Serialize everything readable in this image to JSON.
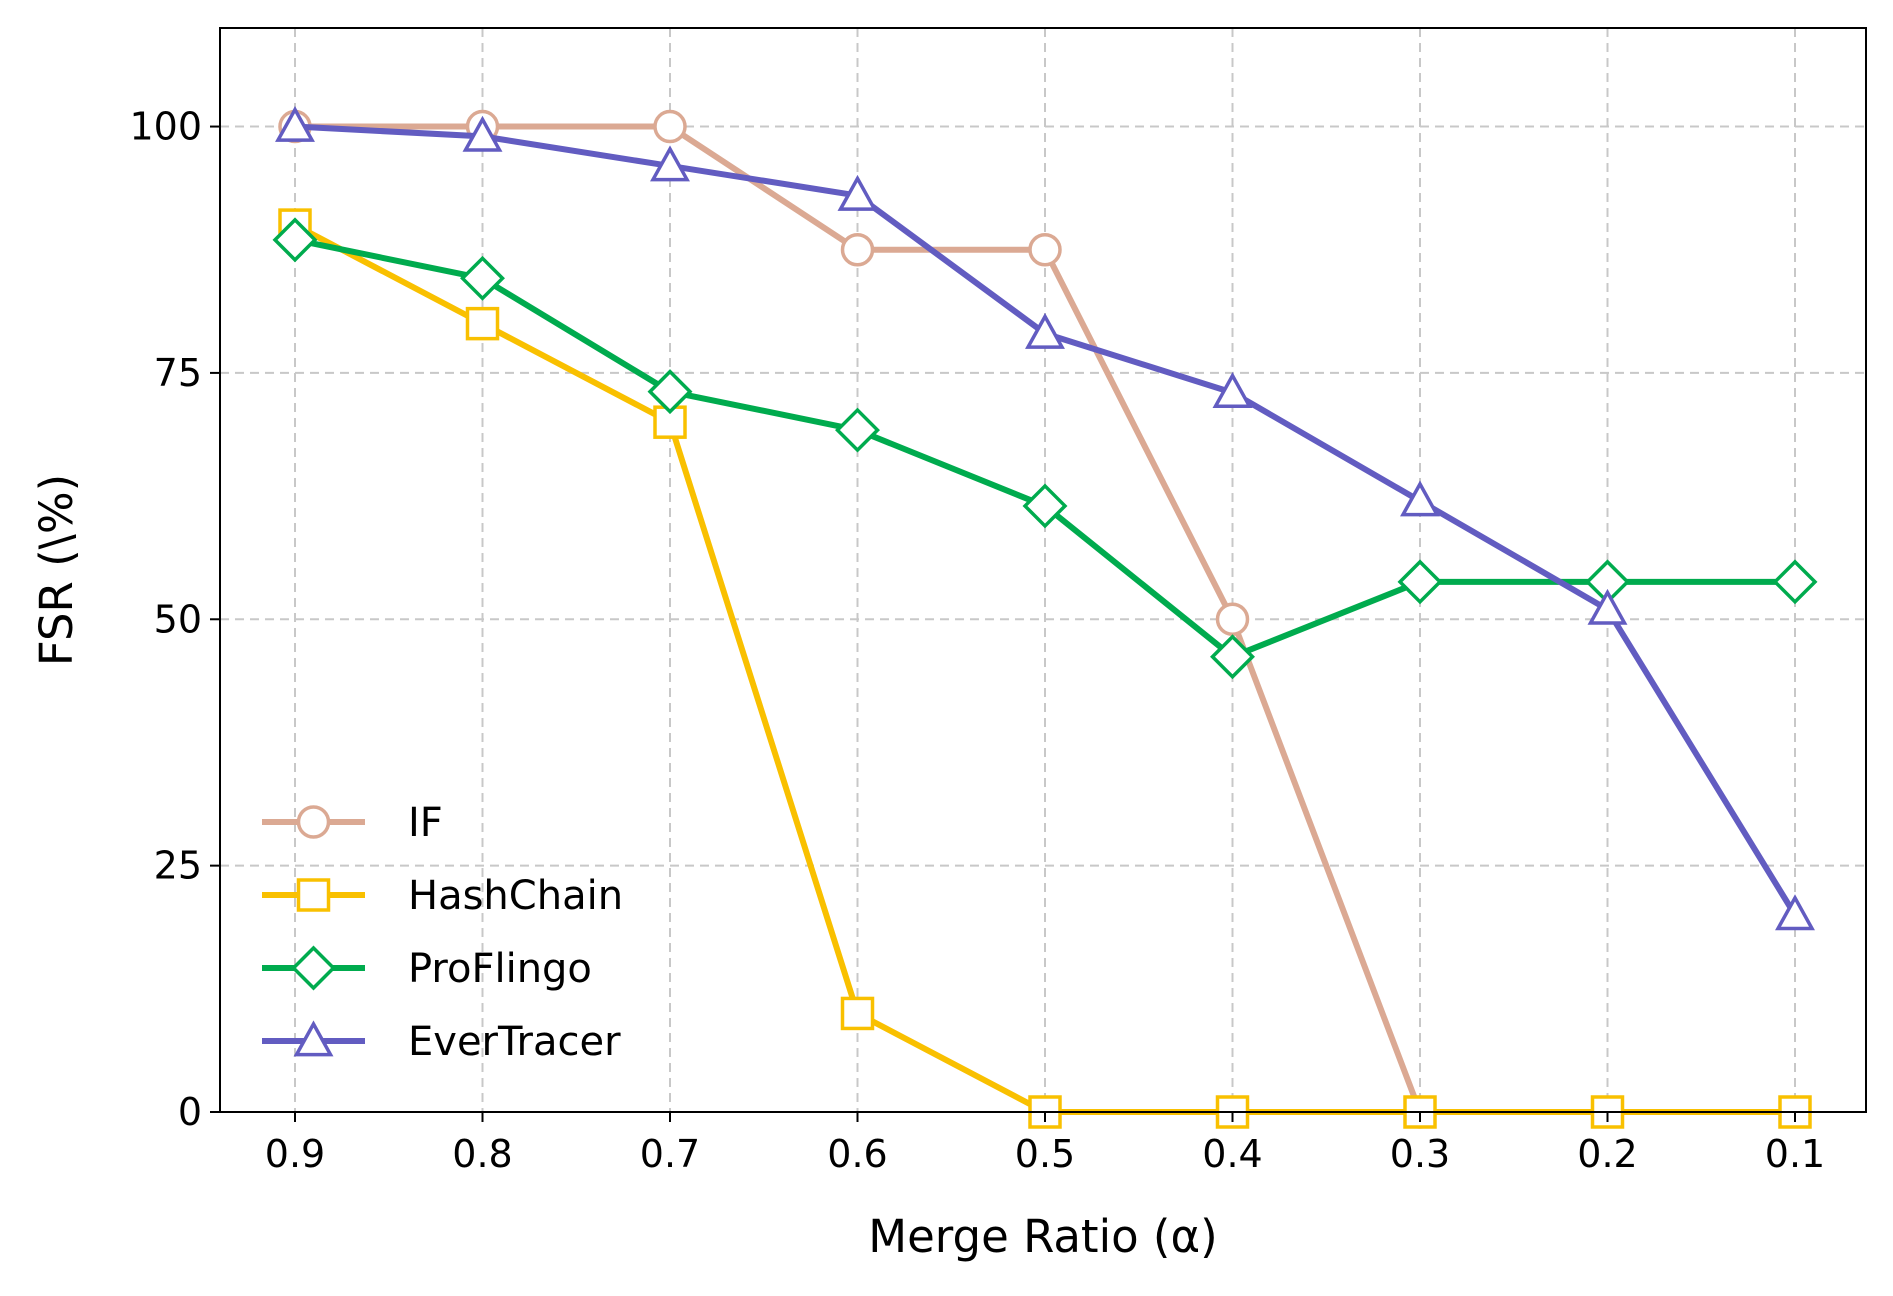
{
  "chart_data": {
    "type": "line",
    "title": "",
    "xlabel": "Merge Ratio (α)",
    "ylabel": "FSR (\\%)",
    "x": [
      0.9,
      0.8,
      0.7,
      0.6,
      0.5,
      0.4,
      0.3,
      0.2,
      0.1
    ],
    "x_tick_labels": [
      "0.9",
      "0.8",
      "0.7",
      "0.6",
      "0.5",
      "0.4",
      "0.3",
      "0.2",
      "0.1"
    ],
    "x_reversed": true,
    "y_ticks": [
      0,
      25,
      50,
      75,
      100
    ],
    "y_tick_labels": [
      "0",
      "25",
      "50",
      "75",
      "100"
    ],
    "ylim": [
      0,
      110
    ],
    "grid": true,
    "legend_position": "lower-left",
    "series": [
      {
        "name": "IF",
        "color": "#dba993",
        "marker": "circle",
        "values": [
          100,
          100,
          100,
          87.5,
          87.5,
          50,
          0,
          null,
          null
        ]
      },
      {
        "name": "HashChain",
        "color": "#f9c000",
        "marker": "square",
        "values": [
          90,
          80,
          70,
          10,
          0,
          0,
          0,
          0,
          0
        ]
      },
      {
        "name": "ProFlingo",
        "color": "#00ab4e",
        "marker": "diamond",
        "values": [
          88.5,
          84.6,
          73.1,
          69.2,
          61.5,
          46.2,
          53.8,
          53.8,
          53.8
        ]
      },
      {
        "name": "EverTracer",
        "color": "#625cc1",
        "marker": "triangle",
        "values": [
          100,
          99,
          96,
          93,
          79,
          73,
          62,
          51,
          20
        ]
      }
    ]
  }
}
